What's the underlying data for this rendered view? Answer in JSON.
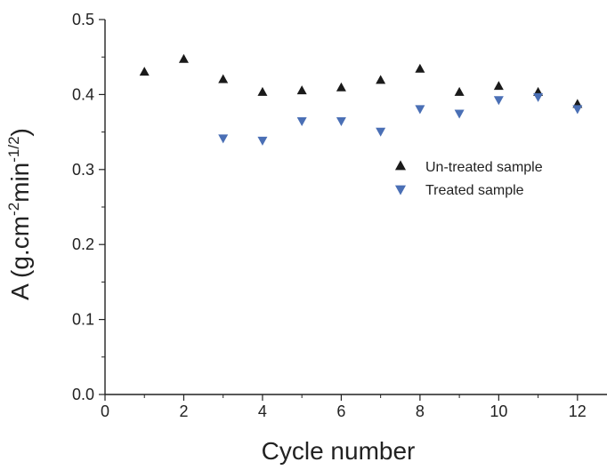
{
  "chart_data": {
    "type": "scatter",
    "xlabel": "Cycle number",
    "ylabel_parts": {
      "base": "A (g.cm",
      "sup1": "-2",
      "mid": "min",
      "sup2": "-1/2",
      "end": ")"
    },
    "xlim": [
      0,
      12.75
    ],
    "ylim": [
      0,
      0.5
    ],
    "x_ticks": [
      0,
      2,
      4,
      6,
      8,
      10,
      12
    ],
    "x_tick_labels": [
      "0",
      "2",
      "4",
      "6",
      "8",
      "10",
      "12"
    ],
    "y_ticks": [
      0.0,
      0.1,
      0.2,
      0.3,
      0.4,
      0.5
    ],
    "y_tick_labels": [
      "0.0",
      "0.1",
      "0.2",
      "0.3",
      "0.4",
      "0.5"
    ],
    "grid": false,
    "legend_position": "center-right",
    "series": [
      {
        "name": "Un-treated sample",
        "marker": "triangle-up",
        "color": "#1a1a1a",
        "x": [
          1,
          2,
          3,
          4,
          5,
          6,
          7,
          8,
          9,
          10,
          11,
          12
        ],
        "y": [
          0.43,
          0.447,
          0.42,
          0.403,
          0.405,
          0.409,
          0.419,
          0.434,
          0.403,
          0.411,
          0.403,
          0.387
        ]
      },
      {
        "name": "Treated sample",
        "marker": "triangle-down",
        "color": "#4a6fb5",
        "x": [
          3,
          4,
          5,
          6,
          7,
          8,
          9,
          10,
          11,
          12
        ],
        "y": [
          0.342,
          0.339,
          0.365,
          0.365,
          0.351,
          0.381,
          0.375,
          0.393,
          0.397,
          0.381
        ]
      }
    ]
  }
}
